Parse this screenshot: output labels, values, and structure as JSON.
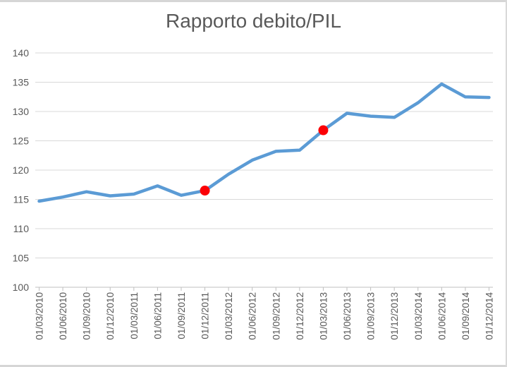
{
  "chart_data": {
    "type": "line",
    "title": "Rapporto debito/PIL",
    "categories": [
      "01/03/2010",
      "01/06/2010",
      "01/09/2010",
      "01/12/2010",
      "01/03/2011",
      "01/06/2011",
      "01/09/2011",
      "01/12/2011",
      "01/03/2012",
      "01/06/2012",
      "01/09/2012",
      "01/12/2012",
      "01/03/2013",
      "01/06/2013",
      "01/09/2013",
      "01/12/2013",
      "01/03/2014",
      "01/06/2014",
      "01/09/2014",
      "01/12/2014"
    ],
    "series": [
      {
        "name": "Rapporto debito/PIL",
        "color": "#5B9BD5",
        "values": [
          114.7,
          115.4,
          116.3,
          115.6,
          115.9,
          117.3,
          115.7,
          116.5,
          119.3,
          121.7,
          123.2,
          123.4,
          126.8,
          129.7,
          129.2,
          129.0,
          131.5,
          134.7,
          132.5,
          132.4
        ]
      }
    ],
    "highlight_points": [
      {
        "category": "01/12/2011",
        "index": 7,
        "value": 116.5,
        "color": "#fb0006"
      },
      {
        "category": "01/03/2013",
        "index": 12,
        "value": 126.8,
        "color": "#fb0006"
      }
    ],
    "ylim": [
      100,
      140
    ],
    "yticks": [
      100,
      105,
      110,
      115,
      120,
      125,
      130,
      135,
      140
    ],
    "x_label_rotation": -90,
    "grid": true,
    "legend": "none",
    "colors": {
      "gridline": "#d9d9d9",
      "axis": "#bfbfbf",
      "tick_label": "#595959",
      "title": "#595959",
      "background": "#ffffff"
    }
  }
}
